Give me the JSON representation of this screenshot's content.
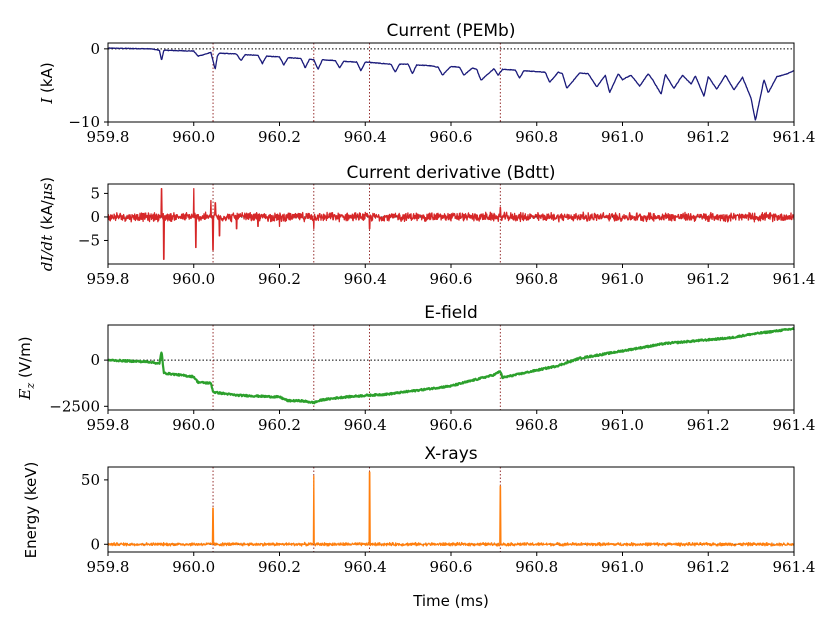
{
  "chart_data": [
    {
      "type": "line",
      "title": "Current (PEMb)",
      "ylabel": "I (kA)",
      "xlabel": "",
      "xlim": [
        959.8,
        961.4
      ],
      "ylim": [
        -10,
        0.8
      ],
      "xticks": [
        959.8,
        960.0,
        960.2,
        960.4,
        960.6,
        960.8,
        961.0,
        961.2,
        961.4
      ],
      "xtick_labels": [
        "959.8",
        "960.0",
        "960.2",
        "960.4",
        "960.6",
        "960.8",
        "961.0",
        "961.2",
        "961.4"
      ],
      "yticks": [
        0,
        -10
      ],
      "ytick_labels": [
        "0",
        "−10"
      ],
      "zero_line": 0,
      "event_lines": [
        960.045,
        960.28,
        960.41,
        960.715
      ],
      "color": "#1a1a7a",
      "series": [
        {
          "x": [
            959.8,
            959.9,
            959.92,
            959.925,
            959.93,
            960.0,
            960.01,
            960.04,
            960.05,
            960.055,
            960.06,
            960.1,
            960.11,
            960.12,
            960.15,
            960.16,
            960.17,
            960.2,
            960.21,
            960.22,
            960.25,
            960.26,
            960.27,
            960.28,
            960.29,
            960.3,
            960.33,
            960.34,
            960.35,
            960.38,
            960.39,
            960.4,
            960.42,
            960.44,
            960.46,
            960.47,
            960.48,
            960.5,
            960.51,
            960.52,
            960.55,
            960.57,
            960.58,
            960.6,
            960.62,
            960.63,
            960.65,
            960.66,
            960.67,
            960.7,
            960.71,
            960.72,
            960.75,
            960.76,
            960.77,
            960.8,
            960.82,
            960.83,
            960.85,
            960.86,
            960.87,
            960.9,
            960.92,
            960.94,
            960.96,
            960.97,
            960.99,
            961.0,
            961.02,
            961.04,
            961.06,
            961.07,
            961.09,
            961.1,
            961.12,
            961.14,
            961.16,
            961.17,
            961.19,
            961.2,
            961.22,
            961.24,
            961.26,
            961.28,
            961.3,
            961.31,
            961.33,
            961.34,
            961.36,
            961.38,
            961.4
          ],
          "y": [
            0.1,
            0.0,
            -0.2,
            -1.6,
            -0.2,
            -0.3,
            -1.0,
            -0.5,
            -2.8,
            -1.0,
            -0.6,
            -0.7,
            -1.6,
            -0.8,
            -0.9,
            -2.0,
            -1.0,
            -1.1,
            -2.2,
            -1.2,
            -1.3,
            -2.6,
            -1.4,
            -1.5,
            -2.8,
            -1.5,
            -1.6,
            -2.6,
            -1.7,
            -1.8,
            -3.0,
            -1.8,
            -1.9,
            -2.0,
            -2.1,
            -3.2,
            -2.1,
            -2.1,
            -3.4,
            -2.2,
            -2.3,
            -2.5,
            -3.6,
            -2.4,
            -2.5,
            -3.6,
            -2.6,
            -2.8,
            -4.3,
            -2.7,
            -3.6,
            -2.8,
            -2.9,
            -4.0,
            -3.0,
            -3.1,
            -3.2,
            -4.6,
            -3.2,
            -3.4,
            -5.4,
            -3.3,
            -3.4,
            -5.2,
            -3.6,
            -6.0,
            -3.4,
            -4.2,
            -3.6,
            -5.1,
            -3.4,
            -4.2,
            -6.2,
            -3.5,
            -5.4,
            -3.6,
            -4.8,
            -3.7,
            -6.5,
            -3.8,
            -5.5,
            -3.6,
            -5.6,
            -3.9,
            -6.8,
            -9.8,
            -4.2,
            -6.0,
            -3.8,
            -3.5,
            -3.0
          ]
        }
      ]
    },
    {
      "type": "line",
      "title": "Current derivative (Bdtt)",
      "ylabel": "dI/dt (kA/μs)",
      "xlabel": "",
      "xlim": [
        959.8,
        961.4
      ],
      "ylim": [
        -10,
        7
      ],
      "xticks": [
        959.8,
        960.0,
        960.2,
        960.4,
        960.6,
        960.8,
        961.0,
        961.2,
        961.4
      ],
      "xtick_labels": [
        "959.8",
        "960.0",
        "960.2",
        "960.4",
        "960.6",
        "960.8",
        "961.0",
        "961.2",
        "961.4"
      ],
      "yticks": [
        5,
        0,
        -5
      ],
      "ytick_labels": [
        "5",
        "0",
        "−5"
      ],
      "zero_line": 0,
      "event_lines": [
        960.045,
        960.28,
        960.41,
        960.715
      ],
      "color": "#d62728",
      "noise": 0.9,
      "series": [
        {
          "spikes_x": [
            959.925,
            959.93,
            960.0,
            960.005,
            960.04,
            960.045,
            960.05,
            960.06,
            960.1,
            960.15,
            960.2,
            960.28,
            960.41,
            960.715
          ],
          "spikes_y": [
            6.0,
            -9.0,
            6.0,
            -6.5,
            3.5,
            -7.0,
            3.0,
            -4.0,
            -2.5,
            -2.0,
            -2.0,
            -2.5,
            -2.5,
            2.0
          ]
        }
      ]
    },
    {
      "type": "line",
      "title": "E-field",
      "ylabel": "E_z (V/m)",
      "xlabel": "",
      "xlim": [
        959.8,
        961.4
      ],
      "ylim": [
        -2700,
        1900
      ],
      "xticks": [
        959.8,
        960.0,
        960.2,
        960.4,
        960.6,
        960.8,
        961.0,
        961.2,
        961.4
      ],
      "xtick_labels": [
        "959.8",
        "960.0",
        "960.2",
        "960.4",
        "960.6",
        "960.8",
        "961.0",
        "961.2",
        "961.4"
      ],
      "yticks": [
        0,
        -2500
      ],
      "ytick_labels": [
        "0",
        "−2500"
      ],
      "zero_line": 0,
      "event_lines": [
        960.045,
        960.28,
        960.41,
        960.715
      ],
      "color": "#2ca02c",
      "series": [
        {
          "x": [
            959.8,
            959.9,
            959.92,
            959.925,
            959.93,
            960.0,
            960.01,
            960.04,
            960.045,
            960.05,
            960.1,
            960.15,
            960.2,
            960.22,
            960.25,
            960.28,
            960.3,
            960.35,
            960.41,
            960.45,
            960.5,
            960.55,
            960.6,
            960.65,
            960.7,
            960.715,
            960.72,
            960.75,
            960.8,
            960.85,
            960.9,
            960.95,
            961.0,
            961.05,
            961.1,
            961.15,
            961.2,
            961.25,
            961.3,
            961.35,
            961.4
          ],
          "y": [
            0,
            -100,
            -200,
            500,
            -700,
            -900,
            -1200,
            -1250,
            -1700,
            -1750,
            -1900,
            -1950,
            -2000,
            -2200,
            -2200,
            -2300,
            -2150,
            -2000,
            -1900,
            -1850,
            -1700,
            -1550,
            -1400,
            -1100,
            -800,
            -600,
            -950,
            -800,
            -550,
            -300,
            100,
            300,
            500,
            700,
            900,
            1000,
            1100,
            1200,
            1400,
            1550,
            1700
          ]
        }
      ]
    },
    {
      "type": "line",
      "title": "X-rays",
      "ylabel": "Energy (keV)",
      "xlabel": "Time (ms)",
      "xlim": [
        959.8,
        961.4
      ],
      "ylim": [
        -6,
        60
      ],
      "xticks": [
        959.8,
        960.0,
        960.2,
        960.4,
        960.6,
        960.8,
        961.0,
        961.2,
        961.4
      ],
      "xtick_labels": [
        "959.8",
        "960.0",
        "960.2",
        "960.4",
        "960.6",
        "960.8",
        "961.0",
        "961.2",
        "961.4"
      ],
      "yticks": [
        50,
        0
      ],
      "ytick_labels": [
        "50",
        "0"
      ],
      "zero_line": 0,
      "event_lines": [
        960.045,
        960.28,
        960.41,
        960.715
      ],
      "color": "#ff7f0e",
      "noise": 1.2,
      "series": [
        {
          "spikes_x": [
            960.045,
            960.28,
            960.41,
            960.715
          ],
          "spikes_y": [
            28,
            53,
            56,
            45
          ]
        }
      ]
    }
  ]
}
